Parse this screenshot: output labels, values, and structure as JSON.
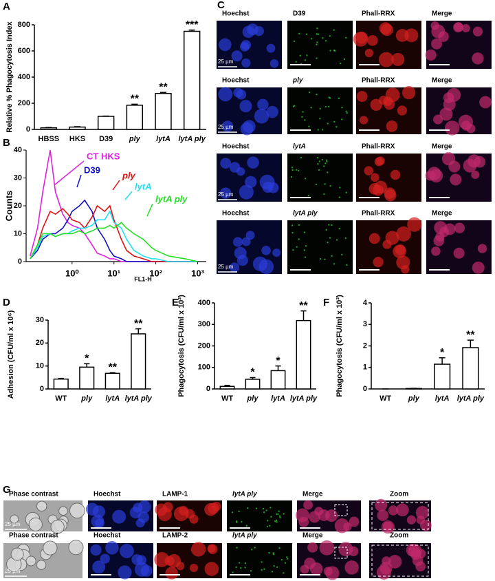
{
  "panel_labels": [
    "A",
    "B",
    "C",
    "D",
    "E",
    "F",
    "G"
  ],
  "chart_data": [
    {
      "type": "bar",
      "ylabel": "Relative % Phagocytosis Index",
      "categories": [
        "HBSS",
        "HKS",
        "D39",
        "ply",
        "lytA",
        "lytA ply"
      ],
      "values": [
        12,
        18,
        100,
        185,
        275,
        750
      ],
      "errors": [
        3,
        3,
        2,
        8,
        8,
        10
      ],
      "significance": [
        null,
        null,
        null,
        "**",
        "**",
        "***"
      ],
      "color": "#ffffff",
      "ylim": [
        0,
        800
      ],
      "yticks": [
        0,
        200,
        400,
        600,
        800
      ]
    },
    {
      "type": "line",
      "xlabel": "FL1-H",
      "ylabel": "Counts",
      "xscale": "log",
      "x": [
        0.1,
        0.15,
        0.2,
        0.3,
        0.4,
        0.6,
        0.8,
        1,
        1.5,
        2,
        3,
        4,
        6,
        8,
        10,
        15,
        20,
        30,
        50,
        80,
        100,
        200,
        500,
        1000
      ],
      "series": [
        {
          "name": "CT HKS",
          "color": "#e020e0",
          "values": [
            2,
            12,
            25,
            40,
            25,
            17,
            14,
            13,
            12,
            10,
            6,
            3,
            2,
            1,
            1,
            0,
            0,
            0,
            0,
            0,
            0,
            0,
            0,
            0
          ]
        },
        {
          "name": "D39",
          "color": "#1010c0",
          "values": [
            1,
            4,
            8,
            10,
            10,
            12,
            15,
            18,
            20,
            22,
            18,
            12,
            8,
            4,
            2,
            1,
            0,
            0,
            0,
            0,
            0,
            0,
            0,
            0
          ]
        },
        {
          "name": "ply",
          "color": "#e01010",
          "values": [
            1,
            6,
            12,
            18,
            17,
            19,
            17,
            15,
            14,
            12,
            16,
            20,
            18,
            20,
            15,
            8,
            4,
            2,
            1,
            0,
            0,
            0,
            0,
            0
          ]
        },
        {
          "name": "lytA",
          "color": "#20e0f0",
          "values": [
            1,
            5,
            9,
            10,
            9,
            10,
            10,
            11,
            12,
            12,
            13,
            15,
            15,
            18,
            14,
            12,
            8,
            4,
            2,
            1,
            1,
            0,
            0,
            0
          ]
        },
        {
          "name": "lytA ply",
          "color": "#20e020",
          "values": [
            1,
            6,
            10,
            10,
            9,
            10,
            10,
            10,
            11,
            10,
            11,
            12,
            12,
            13,
            12,
            14,
            12,
            10,
            8,
            5,
            4,
            2,
            1,
            0
          ]
        }
      ],
      "xlim": [
        0.08,
        1600
      ],
      "xticks": [
        {
          "value": 1,
          "label": "10⁰"
        },
        {
          "value": 10,
          "label": "10¹"
        },
        {
          "value": 100,
          "label": "10²"
        },
        {
          "value": 1000,
          "label": "10³"
        }
      ],
      "ylim": [
        0,
        40
      ],
      "yticks": [
        0,
        10,
        20,
        30,
        40
      ]
    },
    {
      "type": "bar",
      "ylabel": "Adhesion (CFU/ml x 10⁶)",
      "categories": [
        "WT",
        "ply",
        "lytA",
        "lytA ply"
      ],
      "values": [
        4.3,
        9.5,
        6.8,
        24
      ],
      "errors": [
        0.3,
        1.5,
        0.3,
        2.2
      ],
      "significance": [
        null,
        "*",
        "**",
        "**"
      ],
      "color": "#ffffff",
      "ylim": [
        0,
        30
      ],
      "yticks": [
        0,
        10,
        20,
        30
      ]
    },
    {
      "type": "bar",
      "ylabel": "Phagocytosis  (CFU/ml x 10³)",
      "categories": [
        "WT",
        "ply",
        "lytA",
        "lytA ply"
      ],
      "values": [
        12,
        45,
        85,
        318
      ],
      "errors": [
        5,
        8,
        22,
        45
      ],
      "significance": [
        null,
        "*",
        "*",
        "**"
      ],
      "color": "#ffffff",
      "ylim": [
        0,
        400
      ],
      "yticks": [
        0,
        100,
        200,
        300,
        400
      ]
    },
    {
      "type": "bar",
      "ylabel": "Phagocytosis (CFU/ml x 10³)",
      "categories": [
        "WT",
        "ply",
        "lytA",
        "lytA ply"
      ],
      "values": [
        0,
        0.02,
        1.15,
        1.92
      ],
      "errors": [
        0,
        0.01,
        0.3,
        0.35
      ],
      "significance": [
        null,
        null,
        "*",
        "**"
      ],
      "color": "#ffffff",
      "ylim": [
        0,
        4
      ],
      "yticks": [
        0,
        1,
        2,
        3,
        4
      ]
    }
  ],
  "micrographs_c": {
    "rows": [
      [
        "Hoechst",
        "D39",
        "Phall-RRX",
        "Merge"
      ],
      [
        "Hoechst",
        "ply",
        "Phall-RRX",
        "Merge"
      ],
      [
        "Hoechst",
        "lytA",
        "Phall-RRX",
        "Merge"
      ],
      [
        "Hoechst",
        "lytA ply",
        "Phall-RRX",
        "Merge"
      ]
    ],
    "scale_bar": "25 µm"
  },
  "micrographs_g": {
    "rows": [
      [
        "Phase contrast",
        "Hoechst",
        "LAMP-1",
        "lytA ply",
        "Merge",
        "Zoom"
      ],
      [
        "Phase contrast",
        "Hoechst",
        "LAMP-2",
        "lytA ply",
        "Merge",
        "Zoom"
      ]
    ],
    "scale_bar": "25 µm"
  }
}
